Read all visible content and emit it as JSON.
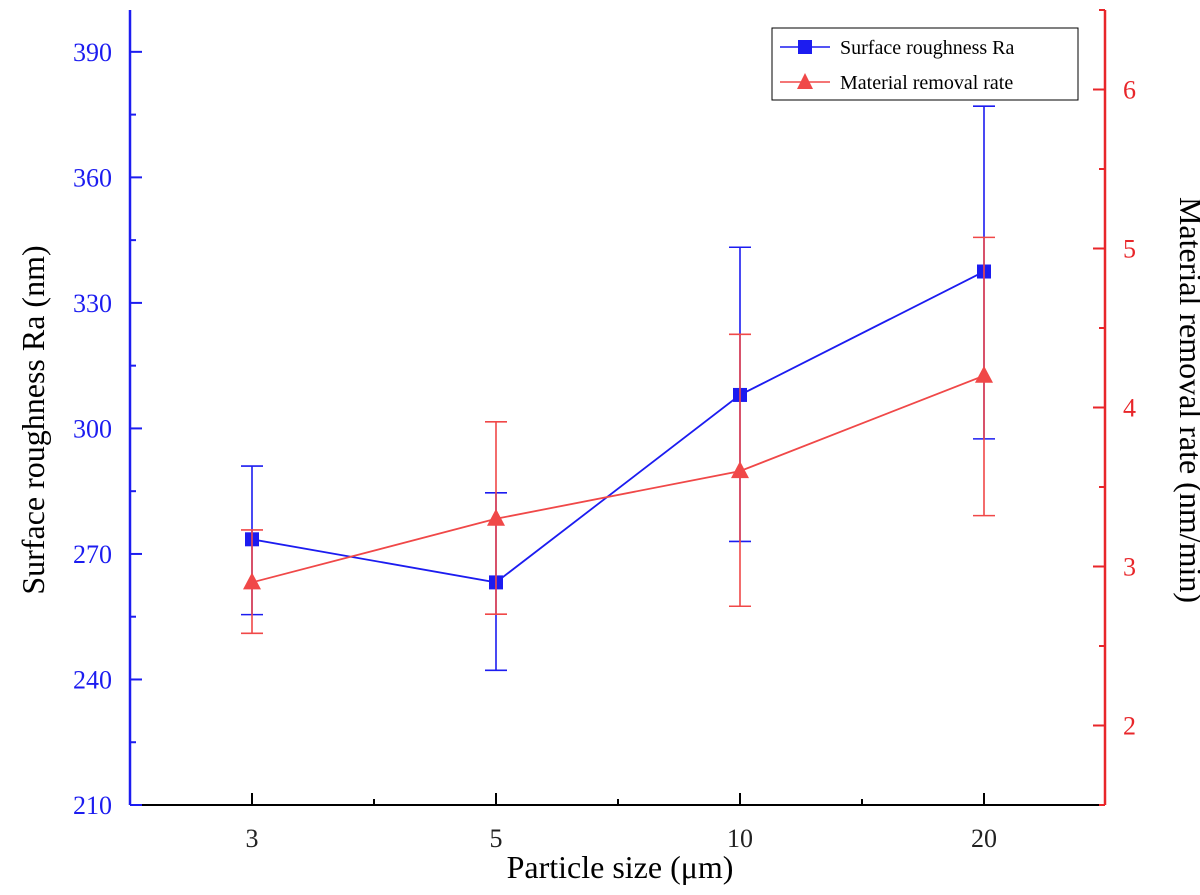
{
  "chart_data": {
    "type": "line",
    "categories": [
      "3",
      "5",
      "10",
      "20"
    ],
    "xlabel": "Particle size (μm)",
    "y_left": {
      "label": "Surface roughness Ra (nm)",
      "range": [
        210,
        400
      ],
      "ticks": [
        210,
        240,
        270,
        300,
        330,
        360,
        390
      ],
      "color": "#1c1cf0"
    },
    "y_right": {
      "label": "Material removal rate (nm/min)",
      "range": [
        1.5,
        6.5
      ],
      "ticks": [
        2,
        3,
        4,
        5,
        6
      ],
      "color": "#e8262a"
    },
    "series": [
      {
        "name": "Surface roughness Ra",
        "axis": "left",
        "marker": "square",
        "color": "#1c1cf0",
        "values": [
          273.5,
          263.2,
          308.0,
          337.5
        ],
        "error_low": [
          255.5,
          242.2,
          273.0,
          297.5
        ],
        "error_high": [
          291.0,
          284.6,
          343.3,
          377.0
        ]
      },
      {
        "name": "Material removal rate",
        "axis": "right",
        "marker": "triangle",
        "color": "#f04848",
        "values": [
          2.9,
          3.3,
          3.6,
          4.2
        ],
        "error_low": [
          2.58,
          2.7,
          2.75,
          3.32
        ],
        "error_high": [
          3.23,
          3.91,
          4.46,
          5.07
        ]
      }
    ],
    "legend": {
      "position": "top-right",
      "entries": [
        "Surface roughness Ra",
        "Material removal rate"
      ]
    },
    "grid": false
  }
}
